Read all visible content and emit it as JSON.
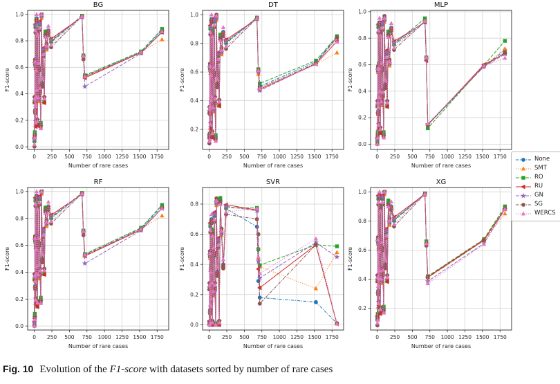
{
  "caption": {
    "label": "Fig. 10",
    "pre": "Evolution of the ",
    "italic": "F1-score",
    "post": " with datasets sorted by number of rare cases"
  },
  "axes": {
    "xlabel": "Number of rare cases",
    "ylabel": "F1-score",
    "xticks": [
      0,
      250,
      500,
      750,
      1000,
      1250,
      1500,
      1750
    ],
    "xlim": [
      -95,
      1915
    ]
  },
  "legend": {
    "position": "right",
    "entries": [
      "None",
      "SMT",
      "RO",
      "RU",
      "GN",
      "SG",
      "WERCS"
    ]
  },
  "series_style": [
    {
      "name": "None",
      "color": "#1f77b4",
      "marker": "circle",
      "line": "dashdot",
      "cluster_offset": 0.0
    },
    {
      "name": "SMT",
      "color": "#ff7f0e",
      "marker": "triangle-up",
      "line": "dot",
      "cluster_offset": -0.012
    },
    {
      "name": "RO",
      "color": "#2ca02c",
      "marker": "square",
      "line": "dash",
      "cluster_offset": 0.015
    },
    {
      "name": "RU",
      "color": "#d62728",
      "marker": "triangle-left",
      "line": "solid",
      "cluster_offset": -0.026
    },
    {
      "name": "GN",
      "color": "#9467bd",
      "marker": "star",
      "line": "dash",
      "cluster_offset": 0.022
    },
    {
      "name": "SG",
      "color": "#8c564b",
      "marker": "circle",
      "line": "dashdot",
      "cluster_offset": -0.038
    },
    {
      "name": "WERCS",
      "color": "#e377c2",
      "marker": "triangle-up",
      "line": "dot",
      "cluster_offset": 0.032
    }
  ],
  "chart_data": {
    "type": "line",
    "cluster_x": [
      2,
      4,
      7,
      10,
      13,
      16,
      20,
      24,
      28,
      33,
      38,
      44,
      50,
      57,
      65,
      73,
      82,
      92,
      103,
      115,
      128,
      142,
      158,
      175,
      200,
      240
    ],
    "tail_x": [
      680,
      700,
      720,
      1520,
      1820
    ],
    "subplots": [
      {
        "title": "BG",
        "ylim": [
          -0.02,
          1.03
        ],
        "yticks": [
          0.0,
          0.2,
          0.4,
          0.6,
          0.8,
          1.0
        ],
        "cluster_base": [
          0.04,
          0.35,
          0.1,
          0.62,
          0.28,
          0.9,
          0.17,
          0.61,
          0.35,
          0.97,
          0.45,
          0.18,
          0.88,
          0.35,
          0.6,
          0.92,
          0.43,
          0.17,
          0.98,
          0.48,
          0.72,
          0.35,
          0.86,
          0.74,
          0.88,
          0.79
        ],
        "series": [
          {
            "name": "None",
            "tail": [
              0.985,
              0.685,
              0.535,
              0.715,
              0.88
            ]
          },
          {
            "name": "SMT",
            "tail": [
              0.985,
              0.685,
              0.525,
              0.715,
              0.81
            ]
          },
          {
            "name": "RO",
            "tail": [
              0.99,
              0.69,
              0.54,
              0.72,
              0.89
            ]
          },
          {
            "name": "RU",
            "tail": [
              0.98,
              0.68,
              0.52,
              0.71,
              0.865
            ]
          },
          {
            "name": "GN",
            "tail": [
              0.98,
              0.68,
              0.455,
              0.705,
              0.87
            ]
          },
          {
            "name": "SG",
            "tail": [
              0.985,
              0.66,
              0.53,
              0.71,
              0.865
            ]
          },
          {
            "name": "WERCS",
            "tail": [
              0.985,
              0.685,
              0.53,
              0.715,
              0.87
            ]
          }
        ]
      },
      {
        "title": "DT",
        "ylim": [
          0.06,
          1.03
        ],
        "yticks": [
          0.2,
          0.4,
          0.6,
          0.8,
          1.0
        ],
        "cluster_base": [
          0.14,
          0.33,
          0.16,
          0.62,
          0.33,
          0.9,
          0.22,
          0.61,
          0.38,
          0.97,
          0.45,
          0.16,
          0.88,
          0.33,
          0.6,
          0.95,
          0.4,
          0.15,
          0.97,
          0.52,
          0.71,
          0.38,
          0.85,
          0.73,
          0.88,
          0.8
        ],
        "series": [
          {
            "name": "None",
            "tail": [
              0.975,
              0.61,
              0.5,
              0.67,
              0.845
            ]
          },
          {
            "name": "SMT",
            "tail": [
              0.98,
              0.585,
              0.475,
              0.655,
              0.735
            ]
          },
          {
            "name": "RO",
            "tail": [
              0.98,
              0.62,
              0.52,
              0.68,
              0.85
            ]
          },
          {
            "name": "RU",
            "tail": [
              0.97,
              0.6,
              0.48,
              0.655,
              0.815
            ]
          },
          {
            "name": "GN",
            "tail": [
              0.97,
              0.6,
              0.47,
              0.66,
              0.84
            ]
          },
          {
            "name": "SG",
            "tail": [
              0.975,
              0.61,
              0.49,
              0.66,
              0.84
            ]
          },
          {
            "name": "WERCS",
            "tail": [
              0.975,
              0.61,
              0.485,
              0.655,
              0.81
            ]
          }
        ]
      },
      {
        "title": "MLP",
        "ylim": [
          -0.04,
          1.01
        ],
        "yticks": [
          0.0,
          0.2,
          0.4,
          0.6,
          0.8,
          1.0
        ],
        "cluster_base": [
          0.02,
          0.3,
          0.08,
          0.55,
          0.25,
          0.88,
          0.13,
          0.6,
          0.33,
          0.92,
          0.42,
          0.1,
          0.85,
          0.3,
          0.58,
          0.9,
          0.38,
          0.08,
          0.93,
          0.45,
          0.68,
          0.3,
          0.84,
          0.6,
          0.88,
          0.75
        ],
        "series": [
          {
            "name": "None",
            "tail": [
              0.92,
              0.645,
              0.145,
              0.585,
              0.71
            ]
          },
          {
            "name": "SMT",
            "tail": [
              0.925,
              0.65,
              0.15,
              0.59,
              0.72
            ]
          },
          {
            "name": "RO",
            "tail": [
              0.95,
              0.655,
              0.12,
              0.595,
              0.78
            ]
          },
          {
            "name": "RU",
            "tail": [
              0.92,
              0.63,
              0.145,
              0.6,
              0.685
            ]
          },
          {
            "name": "GN",
            "tail": [
              0.925,
              0.645,
              0.15,
              0.585,
              0.68
            ]
          },
          {
            "name": "SG",
            "tail": [
              0.925,
              0.65,
              0.145,
              0.59,
              0.69
            ]
          },
          {
            "name": "WERCS",
            "tail": [
              0.93,
              0.655,
              0.155,
              0.59,
              0.65
            ]
          }
        ]
      },
      {
        "title": "RF",
        "ylim": [
          -0.03,
          1.03
        ],
        "yticks": [
          0.0,
          0.2,
          0.4,
          0.6,
          0.8,
          1.0
        ],
        "cluster_base": [
          0.01,
          0.36,
          0.08,
          0.63,
          0.3,
          0.93,
          0.18,
          0.6,
          0.36,
          0.97,
          0.47,
          0.16,
          0.9,
          0.36,
          0.62,
          0.94,
          0.4,
          0.2,
          0.99,
          0.5,
          0.7,
          0.4,
          0.87,
          0.75,
          0.89,
          0.8
        ],
        "series": [
          {
            "name": "None",
            "tail": [
              0.985,
              0.705,
              0.53,
              0.725,
              0.89
            ]
          },
          {
            "name": "SMT",
            "tail": [
              0.985,
              0.7,
              0.52,
              0.72,
              0.82
            ]
          },
          {
            "name": "RO",
            "tail": [
              0.99,
              0.71,
              0.535,
              0.73,
              0.9
            ]
          },
          {
            "name": "RU",
            "tail": [
              0.98,
              0.7,
              0.52,
              0.715,
              0.875
            ]
          },
          {
            "name": "GN",
            "tail": [
              0.98,
              0.7,
              0.465,
              0.71,
              0.875
            ]
          },
          {
            "name": "SG",
            "tail": [
              0.985,
              0.675,
              0.525,
              0.72,
              0.875
            ]
          },
          {
            "name": "WERCS",
            "tail": [
              0.985,
              0.705,
              0.53,
              0.72,
              0.875
            ]
          }
        ]
      },
      {
        "title": "SVR",
        "ylim": [
          -0.035,
          0.91
        ],
        "yticks": [
          0.0,
          0.2,
          0.4,
          0.6,
          0.8
        ],
        "cluster_base": [
          0.0,
          0.25,
          0.0,
          0.45,
          0.1,
          0.65,
          0.0,
          0.38,
          0.15,
          0.7,
          0.3,
          0.0,
          0.62,
          0.2,
          0.48,
          0.72,
          0.25,
          0.0,
          0.8,
          0.35,
          0.55,
          0.0,
          0.83,
          0.6,
          0.4,
          0.77
        ],
        "series": [
          {
            "name": "None",
            "tail": [
              0.65,
              0.29,
              0.18,
              0.15,
              0.01
            ]
          },
          {
            "name": "SMT",
            "tail": [
              0.765,
              0.44,
              0.385,
              0.24,
              0.48
            ]
          },
          {
            "name": "RO",
            "tail": [
              0.775,
              0.5,
              0.395,
              0.53,
              0.52
            ]
          },
          {
            "name": "RU",
            "tail": [
              0.76,
              0.37,
              0.245,
              0.53,
              0.005
            ]
          },
          {
            "name": "GN",
            "tail": [
              0.755,
              0.42,
              0.31,
              0.545,
              0.45
            ]
          },
          {
            "name": "SG",
            "tail": [
              0.7,
              0.6,
              0.14,
              0.53,
              0.01
            ]
          },
          {
            "name": "WERCS",
            "tail": [
              0.77,
              0.45,
              0.34,
              0.57,
              0.005
            ]
          }
        ]
      },
      {
        "title": "XG",
        "ylim": [
          0.05,
          1.03
        ],
        "yticks": [
          0.2,
          0.4,
          0.6,
          0.8,
          1.0
        ],
        "cluster_base": [
          0.12,
          0.4,
          0.15,
          0.65,
          0.32,
          0.95,
          0.22,
          0.62,
          0.38,
          0.98,
          0.48,
          0.18,
          0.9,
          0.38,
          0.62,
          0.95,
          0.45,
          0.2,
          0.99,
          0.5,
          0.72,
          0.4,
          0.93,
          0.78,
          0.9,
          0.8
        ],
        "series": [
          {
            "name": "None",
            "tail": [
              0.985,
              0.645,
              0.415,
              0.67,
              0.885
            ]
          },
          {
            "name": "SMT",
            "tail": [
              0.985,
              0.64,
              0.41,
              0.665,
              0.85
            ]
          },
          {
            "name": "RO",
            "tail": [
              0.99,
              0.66,
              0.42,
              0.675,
              0.9
            ]
          },
          {
            "name": "RU",
            "tail": [
              0.985,
              0.645,
              0.415,
              0.67,
              0.885
            ]
          },
          {
            "name": "GN",
            "tail": [
              0.98,
              0.64,
              0.385,
              0.645,
              0.88
            ]
          },
          {
            "name": "SG",
            "tail": [
              0.985,
              0.63,
              0.41,
              0.665,
              0.88
            ]
          },
          {
            "name": "WERCS",
            "tail": [
              0.985,
              0.645,
              0.37,
              0.64,
              0.88
            ]
          }
        ]
      }
    ]
  },
  "colors": {
    "grid": "#d3d3d3",
    "spine": "#2b2b2b",
    "tick_label": "#262626",
    "background": "#ffffff"
  }
}
